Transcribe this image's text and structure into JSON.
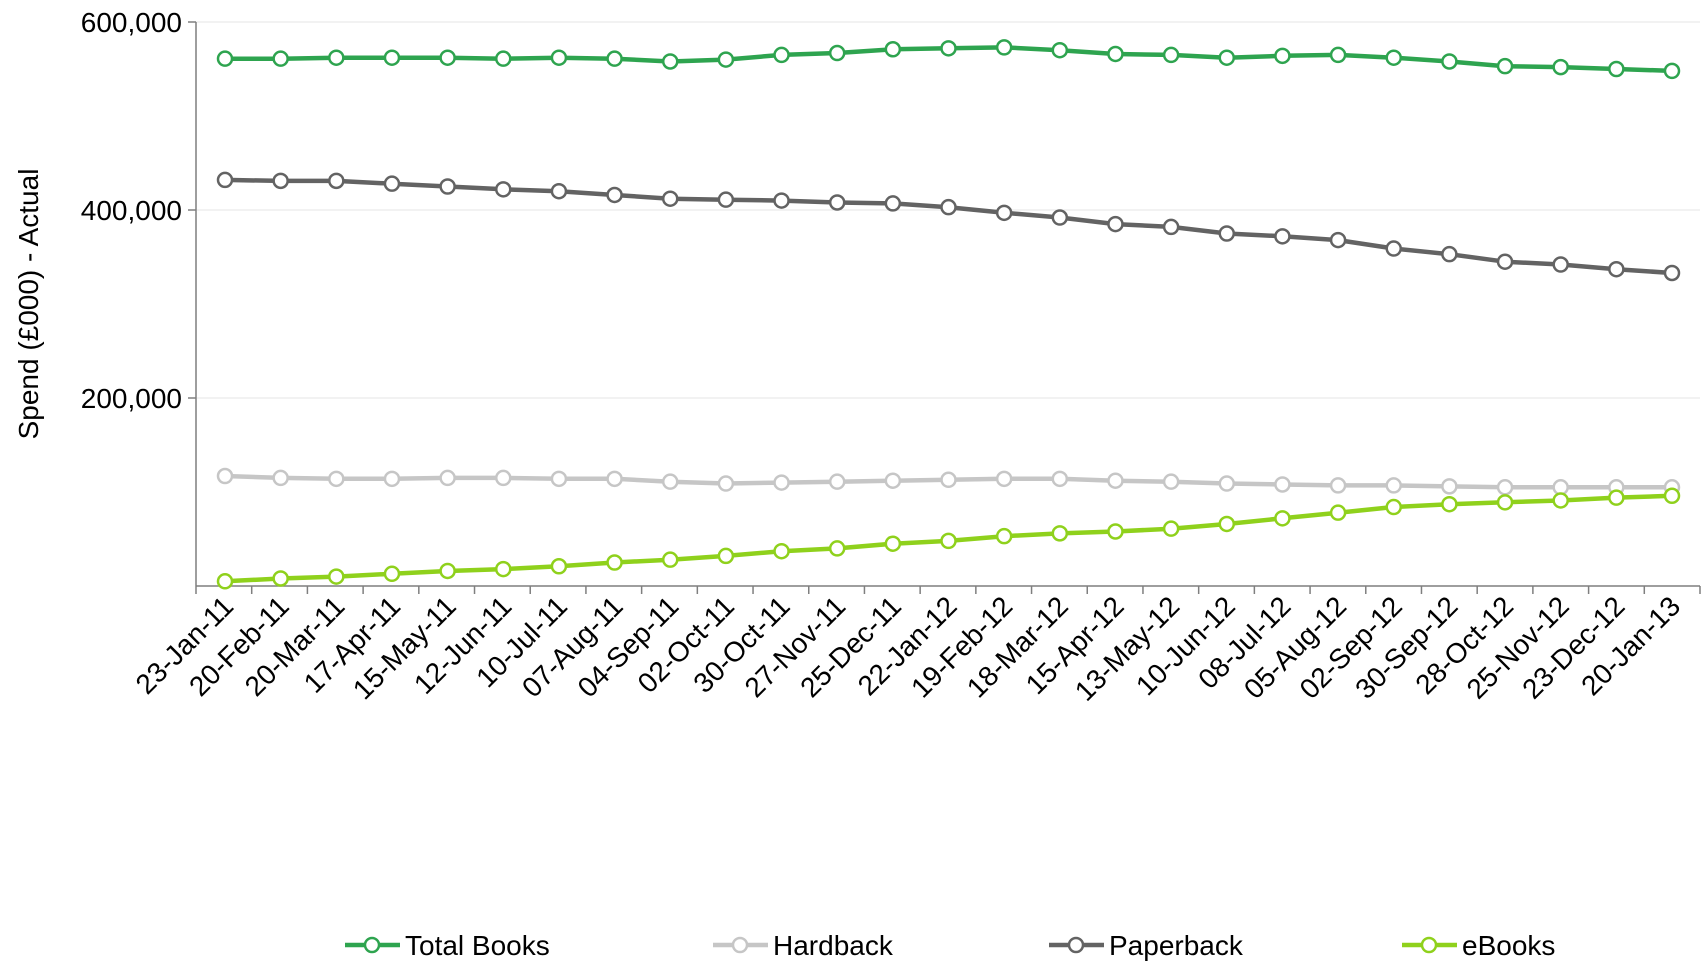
{
  "chart_data": {
    "type": "line",
    "title": "",
    "xlabel": "",
    "ylabel": "Spend (£000) - Actual",
    "ylim": [
      0,
      600000
    ],
    "yticks": [
      {
        "value": 200000,
        "label": "200,000"
      },
      {
        "value": 400000,
        "label": "400,000"
      },
      {
        "value": 600000,
        "label": "600,000"
      }
    ],
    "grid": true,
    "legend_position": "bottom",
    "categories": [
      "23-Jan-11",
      "20-Feb-11",
      "20-Mar-11",
      "17-Apr-11",
      "15-May-11",
      "12-Jun-11",
      "10-Jul-11",
      "07-Aug-11",
      "04-Sep-11",
      "02-Oct-11",
      "30-Oct-11",
      "27-Nov-11",
      "25-Dec-11",
      "22-Jan-12",
      "19-Feb-12",
      "18-Mar-12",
      "15-Apr-12",
      "13-May-12",
      "10-Jun-12",
      "08-Jul-12",
      "05-Aug-12",
      "02-Sep-12",
      "30-Sep-12",
      "28-Oct-12",
      "25-Nov-12",
      "23-Dec-12",
      "20-Jan-13"
    ],
    "series": [
      {
        "name": "Total Books",
        "color": "#2ea44f",
        "values": [
          561000,
          561000,
          562000,
          562000,
          562000,
          561000,
          562000,
          561000,
          558000,
          560000,
          565000,
          567000,
          571000,
          572000,
          573000,
          570000,
          566000,
          565000,
          562000,
          564000,
          565000,
          562000,
          558000,
          553000,
          552000,
          550000,
          548000
        ]
      },
      {
        "name": "Hardback",
        "color": "#c6c6c6",
        "values": [
          117000,
          115000,
          114000,
          114000,
          115000,
          115000,
          114000,
          114000,
          111000,
          109000,
          110000,
          111000,
          112000,
          113000,
          114000,
          114000,
          112000,
          111000,
          109000,
          108000,
          107000,
          107000,
          106000,
          105000,
          105000,
          105000,
          105000
        ]
      },
      {
        "name": "Paperback",
        "color": "#636363",
        "values": [
          432000,
          431000,
          431000,
          428000,
          425000,
          422000,
          420000,
          416000,
          412000,
          411000,
          410000,
          408000,
          407000,
          403000,
          397000,
          392000,
          385000,
          382000,
          375000,
          372000,
          368000,
          359000,
          353000,
          345000,
          342000,
          337000,
          333000
        ]
      },
      {
        "name": "eBooks",
        "color": "#8fd11c",
        "values": [
          5000,
          8000,
          10000,
          13000,
          16000,
          18000,
          21000,
          25000,
          28000,
          32000,
          37000,
          40000,
          45000,
          48000,
          53000,
          56000,
          58000,
          61000,
          66000,
          72000,
          78000,
          84000,
          87000,
          89000,
          91000,
          94000,
          96000
        ]
      }
    ]
  }
}
